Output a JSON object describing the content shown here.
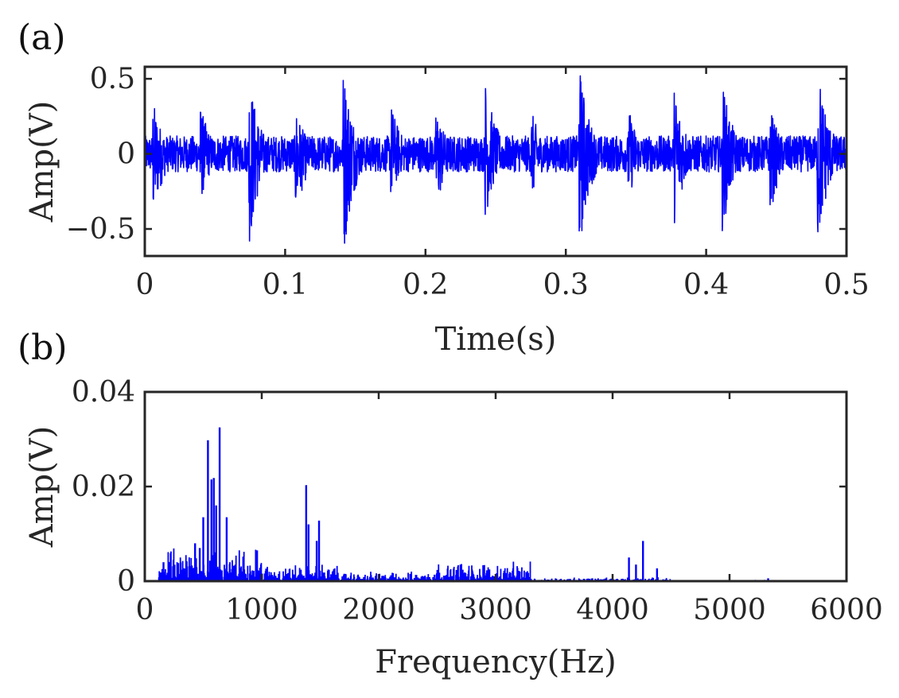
{
  "colors": {
    "signal": "#0000ff",
    "axis": "#262626",
    "background": "#ffffff"
  },
  "chart_data": [
    {
      "panel_label": "(a)",
      "type": "line",
      "xlabel": "Time(s)",
      "ylabel": "Amp(V)",
      "xlim": [
        0,
        0.5
      ],
      "ylim": [
        -0.68,
        0.58
      ],
      "xticks": [
        0,
        0.1,
        0.2,
        0.3,
        0.4,
        0.5
      ],
      "xtick_labels": [
        "0",
        "0.1",
        "0.2",
        "0.3",
        "0.4",
        "0.5"
      ],
      "yticks": [
        0.5,
        0,
        -0.5
      ],
      "ytick_labels": [
        "0.5",
        "0",
        "−0.5"
      ],
      "grid": false,
      "color": "#0000ff",
      "noise_amplitude": 0.12,
      "impulses": [
        {
          "t": 0.006,
          "peak": 0.36,
          "trough": -0.45
        },
        {
          "t": 0.04,
          "peak": 0.32,
          "trough": -0.32
        },
        {
          "t": 0.075,
          "peak": 0.5,
          "trough": -0.6
        },
        {
          "t": 0.108,
          "peak": 0.3,
          "trough": -0.42
        },
        {
          "t": 0.142,
          "peak": 0.56,
          "trough": -0.67
        },
        {
          "t": 0.176,
          "peak": 0.33,
          "trough": -0.3
        },
        {
          "t": 0.208,
          "peak": 0.3,
          "trough": -0.38
        },
        {
          "t": 0.243,
          "peak": 0.5,
          "trough": -0.43
        },
        {
          "t": 0.276,
          "peak": 0.28,
          "trough": -0.3
        },
        {
          "t": 0.31,
          "peak": 0.58,
          "trough": -0.65
        },
        {
          "t": 0.345,
          "peak": 0.3,
          "trough": -0.3
        },
        {
          "t": 0.378,
          "peak": 0.44,
          "trough": -0.46
        },
        {
          "t": 0.412,
          "peak": 0.47,
          "trough": -0.52
        },
        {
          "t": 0.446,
          "peak": 0.3,
          "trough": -0.4
        },
        {
          "t": 0.48,
          "peak": 0.58,
          "trough": -0.63
        }
      ]
    },
    {
      "panel_label": "(b)",
      "type": "bar",
      "xlabel": "Frequency(Hz)",
      "ylabel": "Amp(V)",
      "xlim": [
        0,
        6000
      ],
      "ylim": [
        0,
        0.04
      ],
      "xticks": [
        0,
        1000,
        2000,
        3000,
        4000,
        5000,
        6000
      ],
      "xtick_labels": [
        "0",
        "1000",
        "2000",
        "3000",
        "4000",
        "5000",
        "6000"
      ],
      "yticks": [
        0,
        0.02,
        0.04
      ],
      "ytick_labels": [
        "0",
        "0.02",
        "0.04"
      ],
      "grid": false,
      "color": "#0000ff",
      "peaks": [
        {
          "f": 540,
          "a": 0.0298
        },
        {
          "f": 570,
          "a": 0.0215
        },
        {
          "f": 590,
          "a": 0.0218
        },
        {
          "f": 640,
          "a": 0.0325
        },
        {
          "f": 500,
          "a": 0.0135
        },
        {
          "f": 610,
          "a": 0.016
        },
        {
          "f": 700,
          "a": 0.0135
        },
        {
          "f": 430,
          "a": 0.008
        },
        {
          "f": 470,
          "a": 0.007
        },
        {
          "f": 160,
          "a": 0.004
        },
        {
          "f": 960,
          "a": 0.0065
        },
        {
          "f": 1380,
          "a": 0.0203
        },
        {
          "f": 1400,
          "a": 0.012
        },
        {
          "f": 1490,
          "a": 0.0128
        },
        {
          "f": 1470,
          "a": 0.0085
        },
        {
          "f": 2700,
          "a": 0.0035
        },
        {
          "f": 4140,
          "a": 0.005
        },
        {
          "f": 4200,
          "a": 0.0035
        },
        {
          "f": 4260,
          "a": 0.0085
        },
        {
          "f": 4380,
          "a": 0.0027
        },
        {
          "f": 5330,
          "a": 0.0006
        }
      ],
      "bands": [
        {
          "from": 120,
          "to": 1000,
          "level": 0.0035
        },
        {
          "from": 1000,
          "to": 1650,
          "level": 0.0018
        },
        {
          "from": 1650,
          "to": 2400,
          "level": 0.001
        },
        {
          "from": 2400,
          "to": 3300,
          "level": 0.002
        },
        {
          "from": 3300,
          "to": 4500,
          "level": 0.0004
        },
        {
          "from": 4500,
          "to": 6000,
          "level": 0.00015
        }
      ]
    }
  ]
}
